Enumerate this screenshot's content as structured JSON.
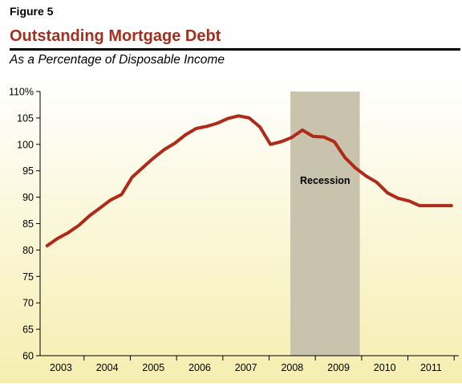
{
  "figure_label": "Figure 5",
  "title": "Outstanding Mortgage Debt",
  "subtitle": "As a Percentage of Disposable Income",
  "colors": {
    "accent": "#a3301f",
    "line": "#b02a1a",
    "recession": "#c9c3ad",
    "bg_top": "#ffffff",
    "bg_bottom": "#f6eeb0"
  },
  "chart_data": {
    "type": "line",
    "title": "Outstanding Mortgage Debt",
    "subtitle": "As a Percentage of Disposable Income",
    "xlabel": "",
    "ylabel": "",
    "ylim": [
      60,
      110
    ],
    "xlim": [
      2002.55,
      2011.6
    ],
    "grid": false,
    "yticks": [
      60,
      65,
      70,
      75,
      80,
      85,
      90,
      95,
      100,
      105,
      110
    ],
    "ytick_labels": [
      "60",
      "65",
      "70",
      "75",
      "80",
      "85",
      "90",
      "95",
      "100",
      "105",
      "110%"
    ],
    "xtick_labels": [
      "2003",
      "2004",
      "2005",
      "2006",
      "2007",
      "2008",
      "2009",
      "2010",
      "2011"
    ],
    "xtick_positions": [
      2003.0,
      2004.0,
      2005.0,
      2006.0,
      2007.0,
      2008.0,
      2009.0,
      2010.0,
      2011.0
    ],
    "recession": {
      "start": 2007.96,
      "end": 2009.46,
      "label": "Recession"
    },
    "series": [
      {
        "name": "",
        "x": [
          2002.7,
          2002.93,
          2003.16,
          2003.39,
          2003.62,
          2003.85,
          2004.08,
          2004.31,
          2004.54,
          2004.77,
          2005.0,
          2005.23,
          2005.46,
          2005.69,
          2005.92,
          2006.15,
          2006.38,
          2006.61,
          2006.84,
          2007.07,
          2007.3,
          2007.53,
          2007.76,
          2007.99,
          2008.22,
          2008.45,
          2008.68,
          2008.91,
          2009.14,
          2009.37,
          2009.6,
          2009.83,
          2010.06,
          2010.29,
          2010.52,
          2010.75,
          2010.98,
          2011.21,
          2011.44
        ],
        "y": [
          80.8,
          82.2,
          83.3,
          84.7,
          86.5,
          88.0,
          89.5,
          90.5,
          93.8,
          95.6,
          97.4,
          99.0,
          100.2,
          101.8,
          103.0,
          103.4,
          104.0,
          104.9,
          105.4,
          105.0,
          103.3,
          100.0,
          100.5,
          101.3,
          102.7,
          101.5,
          101.4,
          100.5,
          97.5,
          95.5,
          94.0,
          92.8,
          90.8,
          89.8,
          89.3,
          88.4,
          88.4,
          88.4,
          88.4
        ]
      }
    ]
  }
}
